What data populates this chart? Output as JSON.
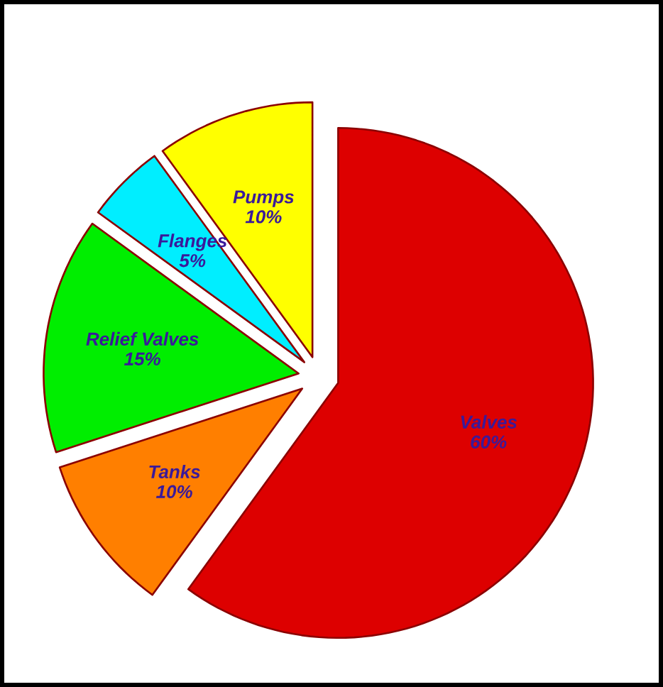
{
  "chart_data": {
    "type": "pie",
    "categories": [
      "Valves",
      "Tanks",
      "Relief Valves",
      "Flanges",
      "Pumps"
    ],
    "values": [
      60,
      10,
      15,
      5,
      10
    ],
    "value_labels": [
      "60%",
      "10%",
      "15%",
      "5%",
      "10%"
    ],
    "colors": [
      "#dd0000",
      "#ff7f00",
      "#00ee00",
      "#00eeff",
      "#ffff00"
    ]
  }
}
